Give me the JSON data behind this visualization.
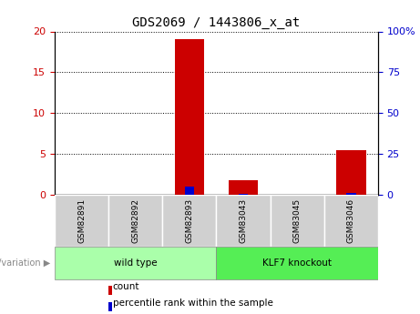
{
  "title": "GDS2069 / 1443806_x_at",
  "samples": [
    "GSM82891",
    "GSM82892",
    "GSM82893",
    "GSM83043",
    "GSM83045",
    "GSM83046"
  ],
  "count_values": [
    0,
    0,
    19,
    1.8,
    0,
    5.5
  ],
  "percentile_values": [
    0,
    0,
    4.8,
    0.5,
    0,
    0.9
  ],
  "groups": [
    {
      "label": "wild type",
      "indices": [
        0,
        1,
        2
      ],
      "color": "#aaffaa"
    },
    {
      "label": "KLF7 knockout",
      "indices": [
        3,
        4,
        5
      ],
      "color": "#55ee55"
    }
  ],
  "group_label": "genotype/variation",
  "left_ylim": [
    0,
    20
  ],
  "right_ylim": [
    0,
    100
  ],
  "left_yticks": [
    0,
    5,
    10,
    15,
    20
  ],
  "right_yticks": [
    0,
    25,
    50,
    75,
    100
  ],
  "right_yticklabels": [
    "0",
    "25",
    "50",
    "75",
    "100%"
  ],
  "bar_color_count": "#cc0000",
  "bar_color_percentile": "#0000cc",
  "legend_count": "count",
  "legend_percentile": "percentile rank within the sample",
  "tick_label_color_left": "#cc0000",
  "tick_label_color_right": "#0000cc",
  "bg_sample": "#d0d0d0",
  "figsize": [
    4.61,
    3.45
  ],
  "dpi": 100
}
